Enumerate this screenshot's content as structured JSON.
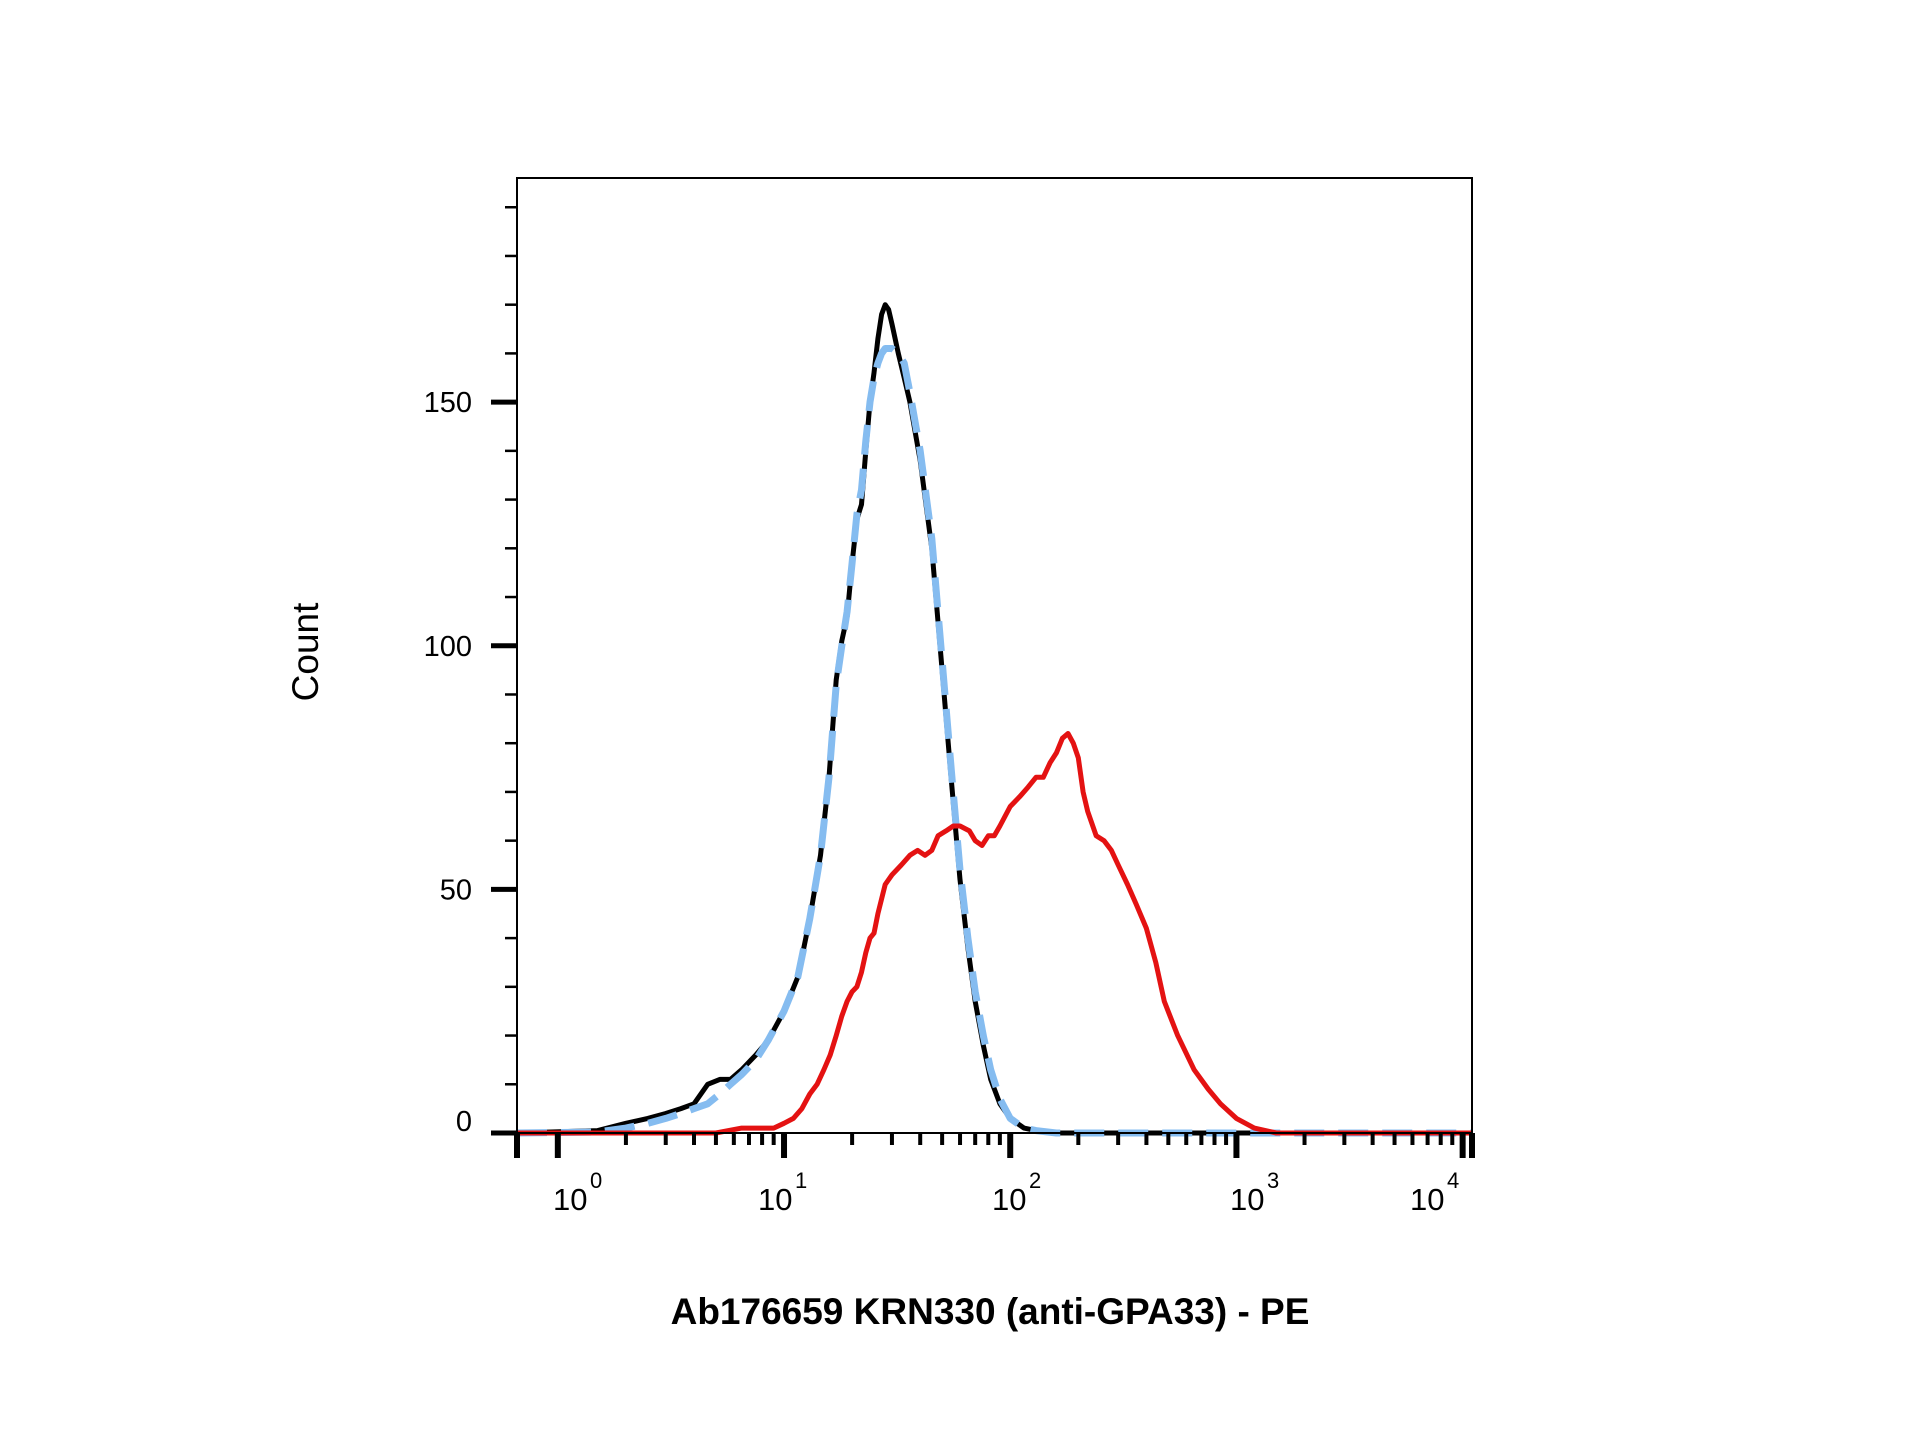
{
  "chart_data": {
    "type": "line",
    "title": "",
    "xlabel": "Ab176659 KRN330 (anti-GPA33) - PE",
    "ylabel": "Count",
    "x_scale": "log",
    "xlim": [
      0.66,
      11000
    ],
    "ylim": [
      0,
      196
    ],
    "x_tick_labels": [
      {
        "base": "10",
        "exp": "0",
        "value": 1
      },
      {
        "base": "10",
        "exp": "1",
        "value": 10
      },
      {
        "base": "10",
        "exp": "2",
        "value": 100
      },
      {
        "base": "10",
        "exp": "3",
        "value": 1000
      },
      {
        "base": "10",
        "exp": "4",
        "value": 10000
      }
    ],
    "y_tick_labels": [
      {
        "label": "0",
        "value": 0
      },
      {
        "label": "50",
        "value": 50
      },
      {
        "label": "100",
        "value": 100
      },
      {
        "label": "150",
        "value": 150
      }
    ],
    "grid": false,
    "legend": "none",
    "series": [
      {
        "color": "#000000",
        "style": "solid",
        "points": [
          [
            0.66,
            0
          ],
          [
            1.5,
            0.5
          ],
          [
            2,
            2
          ],
          [
            2.5,
            3
          ],
          [
            3,
            4
          ],
          [
            3.5,
            5
          ],
          [
            4,
            6
          ],
          [
            4.6,
            10
          ],
          [
            5.2,
            11
          ],
          [
            5.8,
            11
          ],
          [
            6.5,
            13
          ],
          [
            7.5,
            16
          ],
          [
            8.5,
            19
          ],
          [
            10,
            25
          ],
          [
            11.5,
            32
          ],
          [
            13,
            44
          ],
          [
            14.5,
            57
          ],
          [
            15.8,
            73
          ],
          [
            17,
            93
          ],
          [
            18,
            101
          ],
          [
            19,
            106
          ],
          [
            20,
            117
          ],
          [
            21,
            126
          ],
          [
            22,
            129
          ],
          [
            23,
            140
          ],
          [
            24,
            150
          ],
          [
            25,
            156
          ],
          [
            26,
            163
          ],
          [
            27,
            168
          ],
          [
            28,
            170
          ],
          [
            29,
            169
          ],
          [
            30,
            166
          ],
          [
            32,
            160
          ],
          [
            34,
            155
          ],
          [
            36,
            150
          ],
          [
            40,
            138
          ],
          [
            45,
            120
          ],
          [
            50,
            95
          ],
          [
            55,
            72
          ],
          [
            60,
            52
          ],
          [
            65,
            38
          ],
          [
            70,
            27
          ],
          [
            76,
            18
          ],
          [
            82,
            11
          ],
          [
            90,
            6
          ],
          [
            100,
            3
          ],
          [
            115,
            1
          ],
          [
            130,
            0.5
          ],
          [
            160,
            0
          ],
          [
            11000,
            0
          ]
        ]
      },
      {
        "color": "#85bcf0",
        "style": "dashed",
        "points": [
          [
            0.66,
            0
          ],
          [
            1.5,
            0.2
          ],
          [
            2,
            1
          ],
          [
            2.5,
            2
          ],
          [
            3,
            3
          ],
          [
            3.5,
            4
          ],
          [
            4,
            5
          ],
          [
            4.6,
            6
          ],
          [
            5.2,
            8
          ],
          [
            5.8,
            10
          ],
          [
            6.5,
            12
          ],
          [
            7.5,
            15
          ],
          [
            8.5,
            19
          ],
          [
            10,
            25
          ],
          [
            11.5,
            32
          ],
          [
            13,
            44
          ],
          [
            14.5,
            57
          ],
          [
            15.8,
            73
          ],
          [
            17,
            92
          ],
          [
            18,
            100
          ],
          [
            19,
            107
          ],
          [
            20,
            117
          ],
          [
            21,
            127
          ],
          [
            22,
            132
          ],
          [
            23,
            142
          ],
          [
            24,
            150
          ],
          [
            25,
            155
          ],
          [
            26,
            158
          ],
          [
            27,
            160
          ],
          [
            28,
            161
          ],
          [
            29,
            161
          ],
          [
            30,
            161
          ],
          [
            32,
            160
          ],
          [
            34,
            158
          ],
          [
            36,
            152
          ],
          [
            40,
            140
          ],
          [
            45,
            122
          ],
          [
            50,
            97
          ],
          [
            55,
            74
          ],
          [
            60,
            54
          ],
          [
            65,
            40
          ],
          [
            70,
            29
          ],
          [
            76,
            20
          ],
          [
            82,
            13
          ],
          [
            90,
            7
          ],
          [
            100,
            3
          ],
          [
            115,
            1
          ],
          [
            130,
            0.5
          ],
          [
            160,
            0
          ],
          [
            11000,
            0
          ]
        ]
      },
      {
        "color": "#e41212",
        "style": "solid",
        "points": [
          [
            0.66,
            0
          ],
          [
            5,
            0
          ],
          [
            6.5,
            1
          ],
          [
            8,
            1
          ],
          [
            9,
            1
          ],
          [
            10,
            2
          ],
          [
            11,
            3
          ],
          [
            12,
            5
          ],
          [
            13,
            8
          ],
          [
            14,
            10
          ],
          [
            15,
            13
          ],
          [
            16,
            16
          ],
          [
            17,
            20
          ],
          [
            18,
            24
          ],
          [
            19,
            27
          ],
          [
            20,
            29
          ],
          [
            21,
            30
          ],
          [
            22,
            33
          ],
          [
            23,
            37
          ],
          [
            24,
            40
          ],
          [
            25,
            41
          ],
          [
            26,
            45
          ],
          [
            28,
            51
          ],
          [
            30,
            53
          ],
          [
            33,
            55
          ],
          [
            36,
            57
          ],
          [
            39,
            58
          ],
          [
            42,
            57
          ],
          [
            45,
            58
          ],
          [
            48,
            61
          ],
          [
            52,
            62
          ],
          [
            56,
            63
          ],
          [
            60,
            63
          ],
          [
            66,
            62
          ],
          [
            70,
            60
          ],
          [
            75,
            59
          ],
          [
            80,
            61
          ],
          [
            85,
            61
          ],
          [
            90,
            63
          ],
          [
            100,
            67
          ],
          [
            110,
            69
          ],
          [
            120,
            71
          ],
          [
            130,
            73
          ],
          [
            140,
            73
          ],
          [
            150,
            76
          ],
          [
            160,
            78
          ],
          [
            170,
            81
          ],
          [
            180,
            82
          ],
          [
            190,
            80
          ],
          [
            200,
            77
          ],
          [
            210,
            70
          ],
          [
            220,
            66
          ],
          [
            240,
            61
          ],
          [
            260,
            60
          ],
          [
            280,
            58
          ],
          [
            300,
            55
          ],
          [
            330,
            51
          ],
          [
            360,
            47
          ],
          [
            400,
            42
          ],
          [
            440,
            35
          ],
          [
            480,
            27
          ],
          [
            550,
            20
          ],
          [
            650,
            13
          ],
          [
            750,
            9
          ],
          [
            850,
            6
          ],
          [
            1000,
            3
          ],
          [
            1200,
            1
          ],
          [
            1500,
            0
          ],
          [
            11000,
            0
          ]
        ]
      }
    ]
  }
}
